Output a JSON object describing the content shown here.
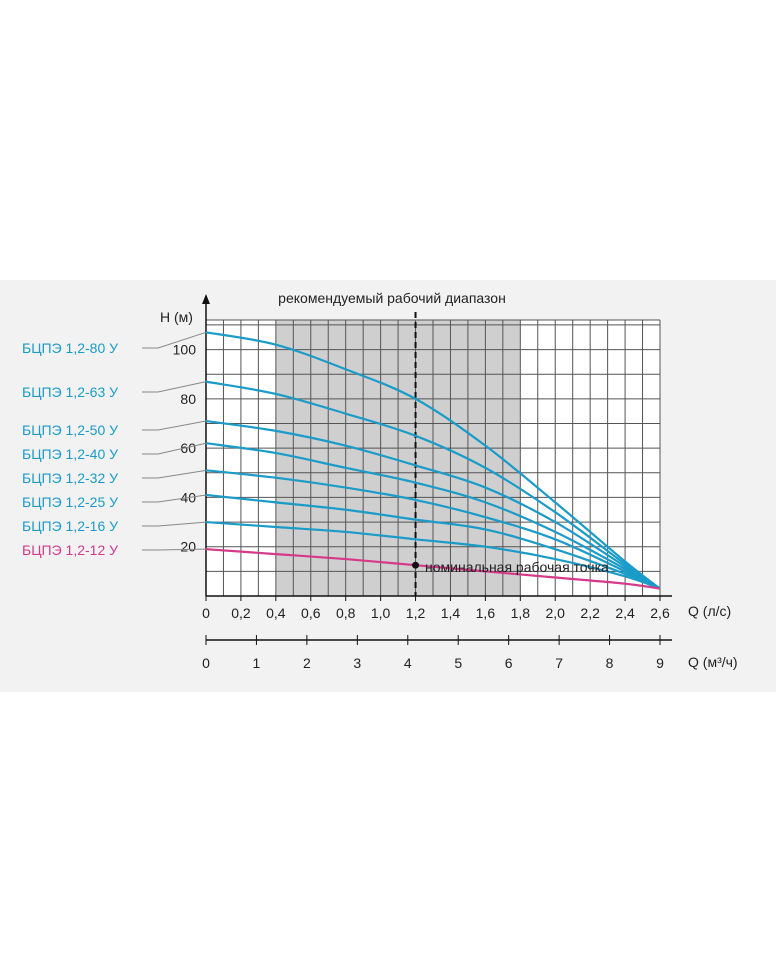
{
  "chart_data": {
    "type": "line",
    "title": "рекомендуемый рабочий диапазон",
    "ylabel": "H (м)",
    "xlabel": "Q (л/с)",
    "x2label": "Q (м³/ч)",
    "xlim": [
      0,
      2.6
    ],
    "ylim": [
      0,
      112
    ],
    "x_ticks": [
      "0",
      "0,2",
      "0,4",
      "0,6",
      "0,8",
      "1,0",
      "1,2",
      "1,4",
      "1,6",
      "1,8",
      "2,0",
      "2,2",
      "2,4",
      "2,6"
    ],
    "x_tick_values": [
      0,
      0.2,
      0.4,
      0.6,
      0.8,
      1.0,
      1.2,
      1.4,
      1.6,
      1.8,
      2.0,
      2.2,
      2.4,
      2.6
    ],
    "y_ticks": [
      "20",
      "40",
      "60",
      "80",
      "100"
    ],
    "y_tick_values": [
      20,
      40,
      60,
      80,
      100
    ],
    "x2_ticks": [
      "0",
      "1",
      "2",
      "3",
      "4",
      "5",
      "6",
      "7",
      "8",
      "9"
    ],
    "x2_tick_values": [
      0,
      1,
      2,
      3,
      4,
      5,
      6,
      7,
      8,
      9
    ],
    "recommended_range": [
      0.4,
      1.8
    ],
    "nominal_x": 1.2,
    "grid": true,
    "annotation": {
      "text": "номинальная рабочая точка",
      "x": 1.2,
      "y": 12.5
    },
    "series": [
      {
        "name": "БЦПЭ 1,2-80 У",
        "color": "#1a9bc8",
        "x": [
          0,
          0.4,
          0.8,
          1.2,
          1.6,
          2.0,
          2.4,
          2.6
        ],
        "y": [
          107,
          102,
          92,
          80,
          61,
          38,
          14,
          3
        ]
      },
      {
        "name": "БЦПЭ 1,2-63 У",
        "color": "#1a9bc8",
        "x": [
          0,
          0.4,
          0.8,
          1.2,
          1.6,
          2.0,
          2.4,
          2.6
        ],
        "y": [
          87,
          82,
          74,
          65,
          52,
          34,
          13,
          3
        ]
      },
      {
        "name": "БЦПЭ 1,2-50 У",
        "color": "#1a9bc8",
        "x": [
          0,
          0.4,
          0.8,
          1.2,
          1.6,
          2.0,
          2.4,
          2.6
        ],
        "y": [
          71,
          67,
          61,
          53,
          44,
          30,
          12,
          3
        ]
      },
      {
        "name": "БЦПЭ 1,2-40 У",
        "color": "#1a9bc8",
        "x": [
          0,
          0.4,
          0.8,
          1.2,
          1.6,
          2.0,
          2.4,
          2.6
        ],
        "y": [
          62,
          58,
          52,
          46,
          38,
          26,
          11,
          3
        ]
      },
      {
        "name": "БЦПЭ 1,2-32 У",
        "color": "#1a9bc8",
        "x": [
          0,
          0.4,
          0.8,
          1.2,
          1.6,
          2.0,
          2.4,
          2.6
        ],
        "y": [
          51,
          48,
          44,
          39,
          32,
          23,
          10,
          3
        ]
      },
      {
        "name": "БЦПЭ 1,2-25 У",
        "color": "#1a9bc8",
        "x": [
          0,
          0.4,
          0.8,
          1.2,
          1.6,
          2.0,
          2.4,
          2.6
        ],
        "y": [
          41,
          38,
          35,
          31,
          27,
          19,
          9,
          3
        ]
      },
      {
        "name": "БЦПЭ 1,2-16 У",
        "color": "#1a9bc8",
        "x": [
          0,
          0.4,
          0.8,
          1.2,
          1.6,
          2.0,
          2.4,
          2.6
        ],
        "y": [
          30,
          28,
          26,
          23,
          20,
          15,
          8,
          3
        ]
      },
      {
        "name": "БЦПЭ 1,2-12 У",
        "color": "#d6388a",
        "x": [
          0,
          0.4,
          0.8,
          1.2,
          1.6,
          2.0,
          2.4,
          2.6
        ],
        "y": [
          19,
          17,
          15,
          12.5,
          10,
          7.5,
          5,
          3
        ]
      }
    ]
  }
}
